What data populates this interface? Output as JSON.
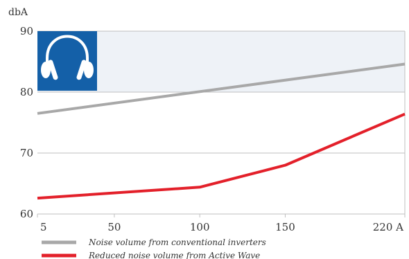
{
  "chart_data": {
    "type": "line",
    "ylabel": "dbA",
    "xlabel": "",
    "x": [
      5,
      50,
      100,
      150,
      220
    ],
    "x_tick_labels": [
      "5",
      "50",
      "100",
      "150",
      "220 A"
    ],
    "xlim": [
      5,
      220
    ],
    "ylim": [
      60,
      90
    ],
    "y_ticks": [
      60,
      70,
      80,
      90
    ],
    "grid": true,
    "legend_position": "bottom-left",
    "series": [
      {
        "name": "Noise volume from conventional inverters",
        "color": "#a8a8a8",
        "x": [
          5,
          220
        ],
        "values": [
          76.5,
          84.6
        ]
      },
      {
        "name": "Reduced noise volume from Active Wave",
        "color": "#e3202a",
        "x": [
          5,
          100,
          150,
          220
        ],
        "values": [
          62.6,
          64.4,
          68.0,
          76.4
        ]
      }
    ],
    "shaded_band": {
      "from": 80,
      "to": 90,
      "color": "#eef2f7"
    },
    "icon": {
      "name": "headphones-icon",
      "background": "#1460a8",
      "foreground": "#ffffff"
    }
  }
}
